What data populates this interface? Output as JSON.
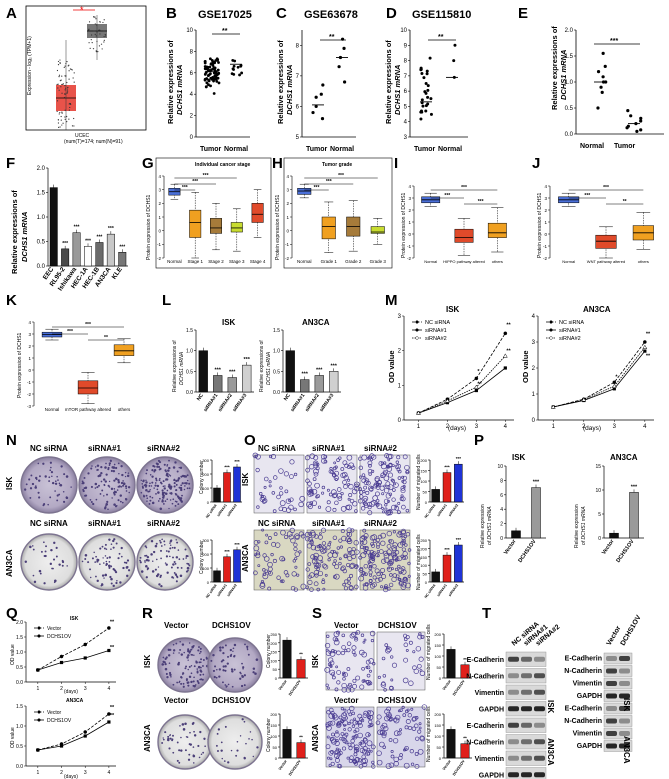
{
  "figure": {
    "panel_letters": [
      "A",
      "B",
      "C",
      "D",
      "E",
      "F",
      "G",
      "H",
      "I",
      "J",
      "K",
      "L",
      "M",
      "N",
      "O",
      "P",
      "Q",
      "R",
      "S",
      "T"
    ],
    "titles": {
      "B": "GSE17025",
      "C": "GSE63678",
      "D": "GSE115810",
      "G": "Individual cancer stage",
      "H": "Tumor grade",
      "L1": "ISK",
      "L2": "AN3CA",
      "M1": "ISK",
      "M2": "AN3CA",
      "P1": "ISK",
      "P2": "AN3CA",
      "Q1": "ISK",
      "Q2": "AN3CA"
    },
    "ylabels": {
      "dchs1_l1": "Relative expressions of",
      "dchs1_l2": "DCHS1 mRNA",
      "protein": "Protein expression of DCHS1",
      "od": "OD value",
      "colony": "Colony number",
      "migrated": "Number of migrated cells",
      "exp_l1": "Relative expression",
      "exp_l2": "of DCHS1 mRNA",
      "A_axis": "Expression - log₂ (TPM+1)"
    },
    "xlabels": {
      "days": "(days)",
      "A_cat": "UCEC",
      "A_sub": "(num(T)=174; num(N)=91)"
    },
    "sig": {
      "s2": "**",
      "s3": "***",
      "s1": "*"
    },
    "groups": {
      "tumor": "Tumor",
      "normal": "Normal",
      "vector": "Vector",
      "dchs1ov": "DCHS1OV",
      "nc": "NC siRNA",
      "si1": "siRNA#1",
      "si2": "siRNA#2",
      "si3": "siRNA#3",
      "nc_short": "NC",
      "others": "others"
    },
    "cell_lines": [
      "EEC",
      "RL95-2",
      "Ishikawa",
      "HEC-1A",
      "HEC-1B",
      "AN3CA",
      "KLE"
    ],
    "stages": [
      "Normal",
      "Stage 1",
      "Stage 2",
      "Stage 3",
      "Stage 4"
    ],
    "grades": [
      "Normal",
      "Grade 1",
      "Grade 2",
      "Grade 3"
    ],
    "pathways": {
      "hippo": "HIPPO pathway altered",
      "wnt": "WNT pathway altered",
      "mtor": "mTOR pathway altered"
    },
    "side_labels": {
      "isk": "ISK",
      "an3ca": "AN3CA"
    },
    "blot": {
      "rows": [
        "E-Cadherin",
        "N-Cadherin",
        "Vimentin",
        "GAPDH"
      ],
      "lanes_si": [
        "NC siRNA",
        "siRNA#1",
        "siRNA#2"
      ],
      "lanes_ov": [
        "Vector",
        "DCHS1OV"
      ]
    },
    "colors": {
      "tumor": "#e8534a",
      "normal": "#6d6d6d",
      "ov": "#e0201b",
      "si2": "#1f33d6",
      "purple": "#5b4a9e"
    }
  },
  "chart_data": [
    {
      "panel": "F",
      "type": "bar",
      "categories": [
        "EEC",
        "RL95-2",
        "Ishikawa",
        "HEC-1A",
        "HEC-1B",
        "AN3CA",
        "KLE"
      ],
      "values": [
        1.6,
        0.35,
        0.68,
        0.4,
        0.48,
        0.65,
        0.28
      ],
      "ylim": [
        0,
        2.0
      ],
      "ticks": [
        0.0,
        0.5,
        1.0,
        1.5,
        2.0
      ],
      "colors": [
        "#111111",
        "#4a4a4a",
        "#9a9a9a",
        "#ffffff",
        "#6a6a6a",
        "#c8c8c8",
        "#777777"
      ]
    },
    {
      "panel": "L",
      "type": "bar",
      "title": "ISK",
      "categories": [
        "NC",
        "siRNA#1",
        "siRNA#2",
        "siRNA#3"
      ],
      "values": [
        1.0,
        0.4,
        0.35,
        0.65
      ],
      "ylim": [
        0,
        1.5
      ],
      "ticks": [
        0.0,
        0.5,
        1.0,
        1.5
      ]
    },
    {
      "panel": "L",
      "type": "bar",
      "title": "AN3CA",
      "categories": [
        "NC",
        "siRNA#1",
        "siRNA#2",
        "siRNA#3"
      ],
      "values": [
        1.0,
        0.3,
        0.4,
        0.5
      ],
      "ylim": [
        0,
        1.5
      ],
      "ticks": [
        0.0,
        0.5,
        1.0,
        1.5
      ]
    },
    {
      "panel": "M",
      "type": "line",
      "title": "ISK",
      "x": [
        1,
        2,
        3,
        4
      ],
      "series": [
        {
          "name": "NC siRNA",
          "values": [
            0.2,
            0.6,
            1.2,
            2.5
          ]
        },
        {
          "name": "siRNA#1",
          "values": [
            0.2,
            0.5,
            0.85,
            1.5
          ]
        },
        {
          "name": "siRNA#2",
          "values": [
            0.2,
            0.55,
            0.95,
            1.85
          ]
        }
      ],
      "ylim": [
        0,
        3
      ],
      "ticks": [
        0,
        1,
        2,
        3
      ]
    },
    {
      "panel": "M",
      "type": "line",
      "title": "AN3CA",
      "x": [
        1,
        2,
        3,
        4
      ],
      "series": [
        {
          "name": "NC siRNA",
          "values": [
            0.5,
            0.8,
            1.45,
            3.0
          ]
        },
        {
          "name": "siRNA#1",
          "values": [
            0.5,
            0.75,
            1.2,
            2.65
          ]
        },
        {
          "name": "siRNA#2",
          "values": [
            0.5,
            0.78,
            1.3,
            2.8
          ]
        }
      ],
      "ylim": [
        0,
        4
      ],
      "ticks": [
        0,
        1,
        2,
        3,
        4
      ]
    },
    {
      "panel": "P",
      "type": "bar",
      "title": "ISK",
      "categories": [
        "Vector",
        "DCHS1OV"
      ],
      "values": [
        1.0,
        7.0
      ],
      "ylim": [
        0,
        10
      ],
      "ticks": [
        0,
        2,
        4,
        6,
        8,
        10
      ]
    },
    {
      "panel": "P",
      "type": "bar",
      "title": "AN3CA",
      "categories": [
        "Vector",
        "DCHS1OV"
      ],
      "values": [
        1.0,
        9.5
      ],
      "ylim": [
        0,
        15
      ],
      "ticks": [
        0,
        5,
        10,
        15
      ]
    },
    {
      "panel": "Q",
      "type": "line",
      "title": "ISK",
      "x": [
        1,
        2,
        3,
        4
      ],
      "series": [
        {
          "name": "Vector",
          "values": [
            0.4,
            0.85,
            1.25,
            1.8
          ]
        },
        {
          "name": "DCHS1OV",
          "values": [
            0.4,
            0.65,
            0.8,
            1.05
          ]
        }
      ],
      "ylim": [
        0,
        2.0
      ],
      "ticks": [
        0.0,
        0.5,
        1.0,
        1.5,
        2.0
      ]
    },
    {
      "panel": "Q",
      "type": "line",
      "title": "AN3CA",
      "x": [
        1,
        2,
        3,
        4
      ],
      "series": [
        {
          "name": "Vector",
          "values": [
            0.4,
            0.55,
            0.85,
            1.3
          ]
        },
        {
          "name": "DCHS1OV",
          "values": [
            0.4,
            0.5,
            0.75,
            1.1
          ]
        }
      ],
      "ylim": [
        0,
        1.5
      ],
      "ticks": [
        0.0,
        0.5,
        1.0,
        1.5
      ]
    },
    {
      "panel": "R",
      "type": "bar",
      "title": "ISK",
      "categories": [
        "Vector",
        "DCHS1OV"
      ],
      "values": [
        215,
        105
      ],
      "ylim": [
        0,
        250
      ],
      "ticks": [
        0,
        50,
        100,
        150,
        200,
        250
      ]
    },
    {
      "panel": "R",
      "type": "bar",
      "title": "AN3CA",
      "categories": [
        "Vector",
        "DCHS1OV"
      ],
      "values": [
        130,
        70
      ],
      "ylim": [
        0,
        200
      ],
      "ticks": [
        0,
        50,
        100,
        150,
        200
      ]
    },
    {
      "panel": "S",
      "type": "bar",
      "title": "ISK",
      "categories": [
        "Vector",
        "DCHS1OV"
      ],
      "values": [
        130,
        60
      ],
      "ylim": [
        0,
        200
      ],
      "ticks": [
        0,
        50,
        100,
        150,
        200
      ]
    },
    {
      "panel": "S",
      "type": "bar",
      "title": "AN3CA",
      "categories": [
        "Vector",
        "DCHS1OV"
      ],
      "values": [
        130,
        65
      ],
      "ylim": [
        0,
        200
      ],
      "ticks": [
        0,
        50,
        100,
        150,
        200
      ]
    },
    {
      "panel": "N",
      "type": "bar",
      "title": "ISK",
      "categories": [
        "NC siRNA",
        "siRNA#1",
        "siRNA#2"
      ],
      "values": [
        100,
        210,
        250
      ],
      "ylim": [
        0,
        300
      ],
      "ticks": [
        0,
        100,
        200,
        300
      ]
    },
    {
      "panel": "N",
      "type": "bar",
      "title": "AN3CA",
      "categories": [
        "NC siRNA",
        "siRNA#1",
        "siRNA#2"
      ],
      "values": [
        80,
        180,
        230
      ],
      "ylim": [
        0,
        300
      ],
      "ticks": [
        0,
        100,
        200,
        300
      ]
    },
    {
      "panel": "O",
      "type": "bar",
      "title": "ISK",
      "categories": [
        "NC siRNA",
        "siRNA#1",
        "siRNA#2"
      ],
      "values": [
        60,
        140,
        180
      ],
      "ylim": [
        0,
        200
      ],
      "ticks": [
        0,
        50,
        100,
        150,
        200
      ]
    },
    {
      "panel": "O",
      "type": "bar",
      "title": "AN3CA",
      "categories": [
        "NC siRNA",
        "siRNA#1",
        "siRNA#2"
      ],
      "values": [
        60,
        160,
        220
      ],
      "ylim": [
        0,
        250
      ],
      "ticks": [
        0,
        50,
        100,
        150,
        200,
        250
      ]
    }
  ]
}
